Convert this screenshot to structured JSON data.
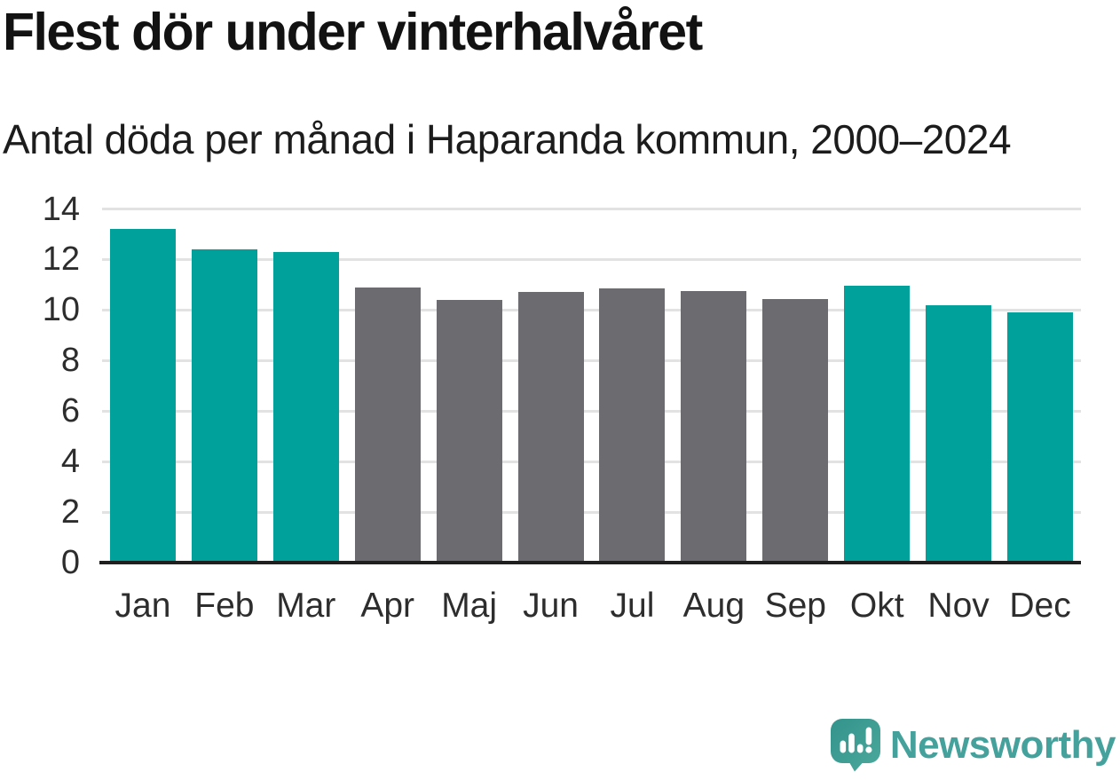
{
  "header": {
    "title": "Flest dör under vinterhalvåret",
    "subtitle": "Antal döda per månad i Haparanda kommun, 2000–2024"
  },
  "colors": {
    "winter_bar": "#00a19a",
    "summer_bar": "#6b6b70",
    "gridline": "#e2e2e2",
    "axis_line": "#1f1f1f",
    "tick_label": "#2d2d2d",
    "title_text": "#121212",
    "logo_teal": "#45a19b",
    "logo_bubble_dark": "#33948d",
    "logo_bubble_light": "#4ba89b",
    "background": "#ffffff"
  },
  "chart_data": {
    "type": "bar",
    "title": "Flest dör under vinterhalvåret",
    "subtitle": "Antal döda per månad i Haparanda kommun, 2000–2024",
    "categories": [
      "Jan",
      "Feb",
      "Mar",
      "Apr",
      "Maj",
      "Jun",
      "Jul",
      "Aug",
      "Sep",
      "Okt",
      "Nov",
      "Dec"
    ],
    "values": [
      13.2,
      12.4,
      12.3,
      10.9,
      10.4,
      10.7,
      10.85,
      10.75,
      10.45,
      10.95,
      10.2,
      9.9
    ],
    "bar_colors": [
      "#00a19a",
      "#00a19a",
      "#00a19a",
      "#6b6b70",
      "#6b6b70",
      "#6b6b70",
      "#6b6b70",
      "#6b6b70",
      "#6b6b70",
      "#00a19a",
      "#00a19a",
      "#00a19a"
    ],
    "xlabel": "",
    "ylabel": "",
    "ylim": [
      0,
      14
    ],
    "yticks": [
      0,
      2,
      4,
      6,
      8,
      10,
      12,
      14
    ],
    "grid": "horizontal",
    "legend_position": "none"
  },
  "footer": {
    "brand": "Newsworthy",
    "logo_icon": "newsworthy-speech-bubble-barchart-icon"
  }
}
